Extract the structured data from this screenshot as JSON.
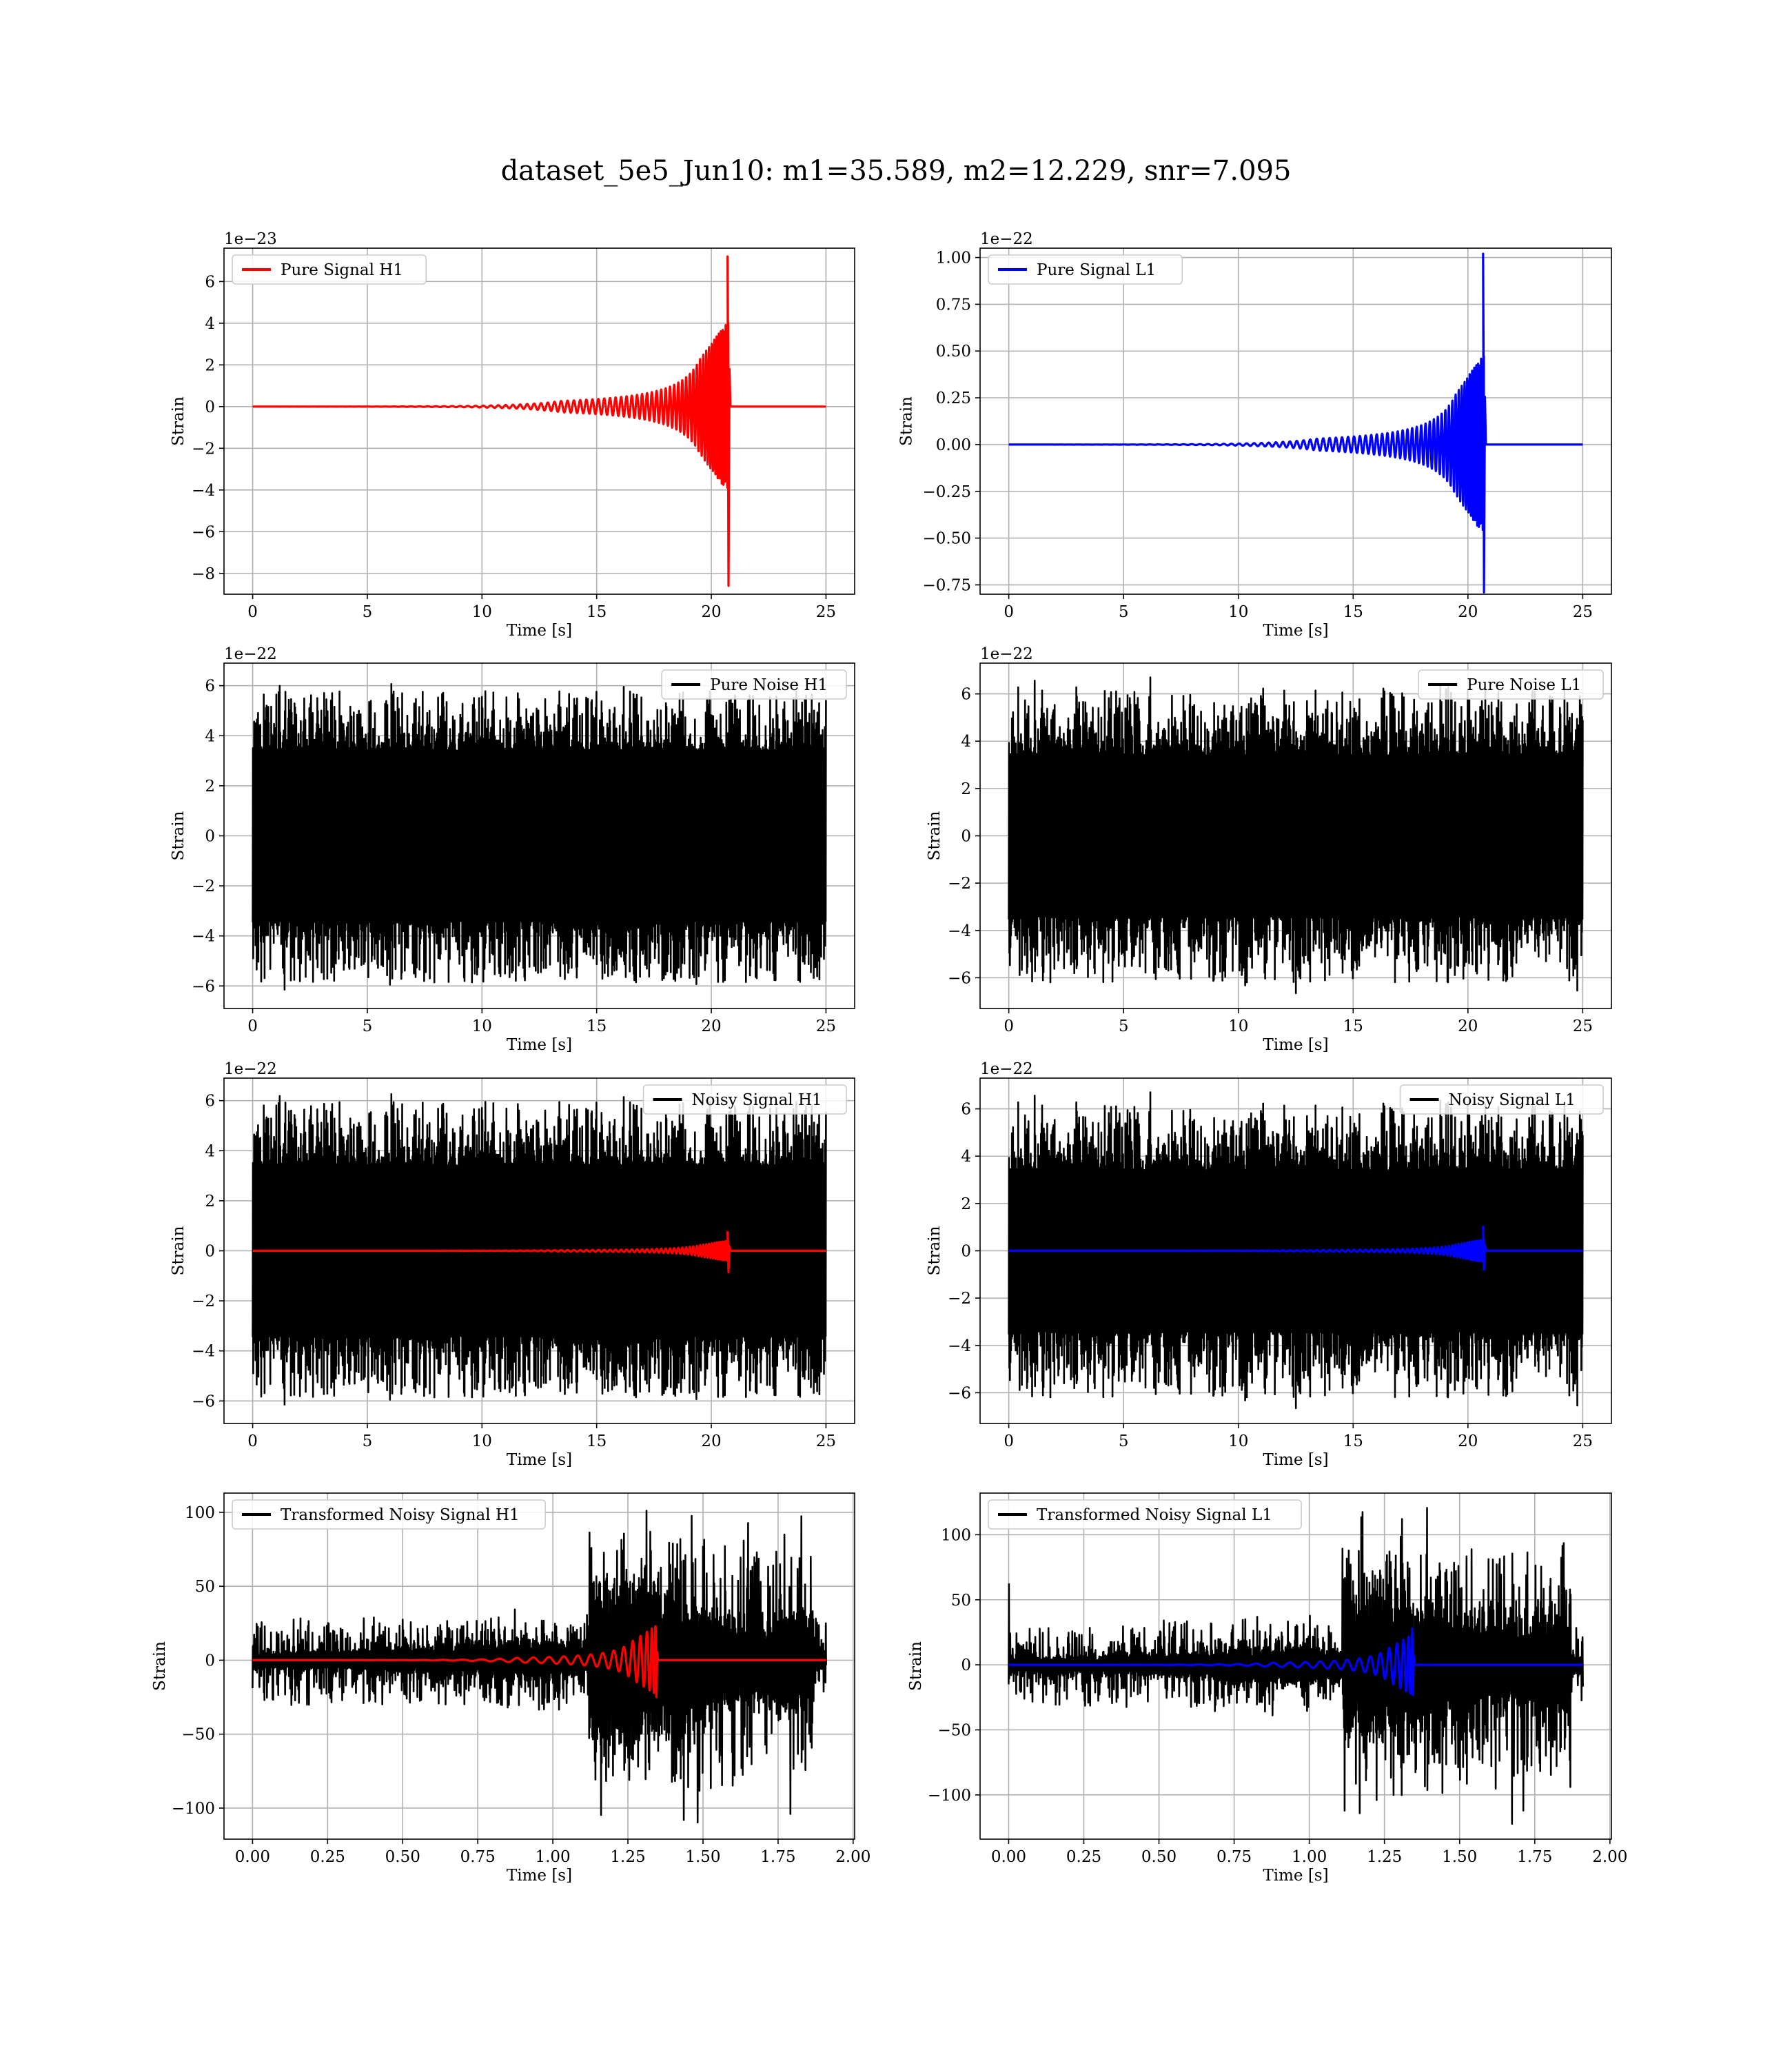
{
  "figure": {
    "title": "dataset_5e5_Jun10: m1=35.589, m2=12.229, snr=7.095"
  },
  "chart_data": [
    {
      "id": "pure-signal-h1",
      "type": "line",
      "xlabel": "Time [s]",
      "ylabel": "Strain",
      "offset_text": "1e−23",
      "xlim": [
        -1.25,
        26.25
      ],
      "ylim": [
        -9.0,
        7.6
      ],
      "xticks": [
        0,
        5,
        10,
        15,
        20,
        25
      ],
      "xtick_labels": [
        "0",
        "5",
        "10",
        "15",
        "20",
        "25"
      ],
      "yticks": [
        -8,
        -6,
        -4,
        -2,
        0,
        2,
        4,
        6
      ],
      "ytick_labels": [
        "−8",
        "−6",
        "−4",
        "−2",
        "0",
        "2",
        "4",
        "6"
      ],
      "grid": true,
      "legend_position": "upper-left",
      "series": [
        {
          "name": "Pure Signal H1",
          "color": "#ff0000",
          "kind": "chirp",
          "t_start": 0,
          "t_end": 25,
          "t_merger": 20.75,
          "peak_max": 7.2,
          "peak_min": -8.6,
          "pre_merger_amp": 2.3
        }
      ]
    },
    {
      "id": "pure-signal-l1",
      "type": "line",
      "xlabel": "Time [s]",
      "ylabel": "Strain",
      "offset_text": "1e−22",
      "xlim": [
        -1.25,
        26.25
      ],
      "ylim": [
        -0.8,
        1.05
      ],
      "xticks": [
        0,
        5,
        10,
        15,
        20,
        25
      ],
      "xtick_labels": [
        "0",
        "5",
        "10",
        "15",
        "20",
        "25"
      ],
      "yticks": [
        -0.75,
        -0.5,
        -0.25,
        0,
        0.25,
        0.5,
        0.75,
        1.0
      ],
      "ytick_labels": [
        "−0.75",
        "−0.50",
        "−0.25",
        "0.00",
        "0.25",
        "0.50",
        "0.75",
        "1.00"
      ],
      "grid": true,
      "legend_position": "upper-left",
      "series": [
        {
          "name": "Pure Signal L1",
          "color": "#0000ff",
          "kind": "chirp",
          "t_start": 0,
          "t_end": 25,
          "t_merger": 20.7,
          "peak_max": 1.02,
          "peak_min": -0.79,
          "pre_merger_amp": 0.27
        }
      ]
    },
    {
      "id": "pure-noise-h1",
      "type": "line",
      "xlabel": "Time [s]",
      "ylabel": "Strain",
      "offset_text": "1e−22",
      "xlim": [
        -1.25,
        26.25
      ],
      "ylim": [
        -6.9,
        6.9
      ],
      "xticks": [
        0,
        5,
        10,
        15,
        20,
        25
      ],
      "xtick_labels": [
        "0",
        "5",
        "10",
        "15",
        "20",
        "25"
      ],
      "yticks": [
        -6,
        -4,
        -2,
        0,
        2,
        4,
        6
      ],
      "ytick_labels": [
        "−6",
        "−4",
        "−2",
        "0",
        "2",
        "4",
        "6"
      ],
      "grid": true,
      "legend_position": "upper-right",
      "series": [
        {
          "name": "Pure Noise H1",
          "color": "#000000",
          "kind": "noise",
          "t_start": 0,
          "t_end": 25,
          "core_amp": 3.4,
          "spike_max": 6.2,
          "spike_min": -6.3,
          "seed": 11
        }
      ]
    },
    {
      "id": "pure-noise-l1",
      "type": "line",
      "xlabel": "Time [s]",
      "ylabel": "Strain",
      "offset_text": "1e−22",
      "xlim": [
        -1.25,
        26.25
      ],
      "ylim": [
        -7.3,
        7.3
      ],
      "xticks": [
        0,
        5,
        10,
        15,
        20,
        25
      ],
      "xtick_labels": [
        "0",
        "5",
        "10",
        "15",
        "20",
        "25"
      ],
      "yticks": [
        -6,
        -4,
        -2,
        0,
        2,
        4,
        6
      ],
      "ytick_labels": [
        "−6",
        "−4",
        "−2",
        "0",
        "2",
        "4",
        "6"
      ],
      "grid": true,
      "legend_position": "upper-right",
      "series": [
        {
          "name": "Pure Noise L1",
          "color": "#000000",
          "kind": "noise",
          "t_start": 0,
          "t_end": 25,
          "core_amp": 3.4,
          "spike_max": 6.8,
          "spike_min": -6.7,
          "seed": 23
        }
      ]
    },
    {
      "id": "noisy-signal-h1",
      "type": "line",
      "xlabel": "Time [s]",
      "ylabel": "Strain",
      "offset_text": "1e−22",
      "xlim": [
        -1.25,
        26.25
      ],
      "ylim": [
        -6.9,
        6.9
      ],
      "xticks": [
        0,
        5,
        10,
        15,
        20,
        25
      ],
      "xtick_labels": [
        "0",
        "5",
        "10",
        "15",
        "20",
        "25"
      ],
      "yticks": [
        -6,
        -4,
        -2,
        0,
        2,
        4,
        6
      ],
      "ytick_labels": [
        "−6",
        "−4",
        "−2",
        "0",
        "2",
        "4",
        "6"
      ],
      "grid": true,
      "legend_position": "upper-right",
      "series": [
        {
          "name": "Noisy Signal H1",
          "color": "#000000",
          "kind": "noise",
          "t_start": 0,
          "t_end": 25,
          "core_amp": 3.4,
          "spike_max": 6.4,
          "spike_min": -6.3,
          "seed": 11
        },
        {
          "name": "",
          "color": "#ff0000",
          "kind": "chirp",
          "t_start": 0,
          "t_end": 25,
          "t_merger": 20.75,
          "peak_max": 0.75,
          "peak_min": -0.86,
          "pre_merger_amp": 0.23
        }
      ]
    },
    {
      "id": "noisy-signal-l1",
      "type": "line",
      "xlabel": "Time [s]",
      "ylabel": "Strain",
      "offset_text": "1e−22",
      "xlim": [
        -1.25,
        26.25
      ],
      "ylim": [
        -7.3,
        7.3
      ],
      "xticks": [
        0,
        5,
        10,
        15,
        20,
        25
      ],
      "xtick_labels": [
        "0",
        "5",
        "10",
        "15",
        "20",
        "25"
      ],
      "yticks": [
        -6,
        -4,
        -2,
        0,
        2,
        4,
        6
      ],
      "ytick_labels": [
        "−6",
        "−4",
        "−2",
        "0",
        "2",
        "4",
        "6"
      ],
      "grid": true,
      "legend_position": "upper-right",
      "series": [
        {
          "name": "Noisy Signal L1",
          "color": "#000000",
          "kind": "noise",
          "t_start": 0,
          "t_end": 25,
          "core_amp": 3.4,
          "spike_max": 6.8,
          "spike_min": -6.7,
          "seed": 23
        },
        {
          "name": "",
          "color": "#0000ff",
          "kind": "chirp",
          "t_start": 0,
          "t_end": 25,
          "t_merger": 20.7,
          "peak_max": 1.02,
          "peak_min": -0.79,
          "pre_merger_amp": 0.27
        }
      ]
    },
    {
      "id": "transformed-noisy-signal-h1",
      "type": "line",
      "xlabel": "Time [s]",
      "ylabel": "Strain",
      "offset_text": "",
      "xlim": [
        -0.095,
        2.005
      ],
      "ylim": [
        -121,
        113
      ],
      "xticks": [
        0,
        0.25,
        0.5,
        0.75,
        1.0,
        1.25,
        1.5,
        1.75,
        2.0
      ],
      "xtick_labels": [
        "0.00",
        "0.25",
        "0.50",
        "0.75",
        "1.00",
        "1.25",
        "1.50",
        "1.75",
        "2.00"
      ],
      "yticks": [
        -100,
        -50,
        0,
        50,
        100
      ],
      "ytick_labels": [
        "−100",
        "−50",
        "0",
        "50",
        "100"
      ],
      "grid": true,
      "legend_position": "upper-left",
      "series": [
        {
          "name": "Transformed Noisy Signal H1",
          "color": "#000000",
          "kind": "whitened",
          "t_start": 0,
          "t_end": 1.91,
          "t_jump": 1.12,
          "t_drop": 1.87,
          "early_amp": 6,
          "mid_amp": 14,
          "late_amp": 55,
          "spike_max": 103,
          "spike_min": -110,
          "seed": 41
        },
        {
          "name": "",
          "color": "#ff0000",
          "kind": "chirp",
          "t_start": 0,
          "t_end": 1.91,
          "t_merger": 1.345,
          "peak_max": 22,
          "peak_min": -25,
          "pre_merger_amp": 13,
          "cycles": 26
        }
      ]
    },
    {
      "id": "transformed-noisy-signal-l1",
      "type": "line",
      "xlabel": "Time [s]",
      "ylabel": "Strain",
      "offset_text": "",
      "xlim": [
        -0.095,
        2.005
      ],
      "ylim": [
        -134,
        132
      ],
      "xticks": [
        0,
        0.25,
        0.5,
        0.75,
        1.0,
        1.25,
        1.5,
        1.75,
        2.0
      ],
      "xtick_labels": [
        "0.00",
        "0.25",
        "0.50",
        "0.75",
        "1.00",
        "1.25",
        "1.50",
        "1.75",
        "2.00"
      ],
      "yticks": [
        -100,
        -50,
        0,
        50,
        100
      ],
      "ytick_labels": [
        "−100",
        "−50",
        "0",
        "50",
        "100"
      ],
      "grid": true,
      "legend_position": "upper-left",
      "series": [
        {
          "name": "Transformed Noisy Signal L1",
          "color": "#000000",
          "kind": "whitened",
          "t_start": 0,
          "t_end": 1.91,
          "t_jump": 1.11,
          "t_drop": 1.87,
          "early_amp": 6,
          "mid_amp": 14,
          "late_amp": 55,
          "spike_max": 121,
          "spike_min": -123,
          "seed": 57,
          "start_spike": 62
        },
        {
          "name": "",
          "color": "#0000ff",
          "kind": "chirp",
          "t_start": 0,
          "t_end": 1.91,
          "t_merger": 1.345,
          "peak_max": 28,
          "peak_min": -22,
          "pre_merger_amp": 13,
          "cycles": 26
        }
      ]
    }
  ]
}
